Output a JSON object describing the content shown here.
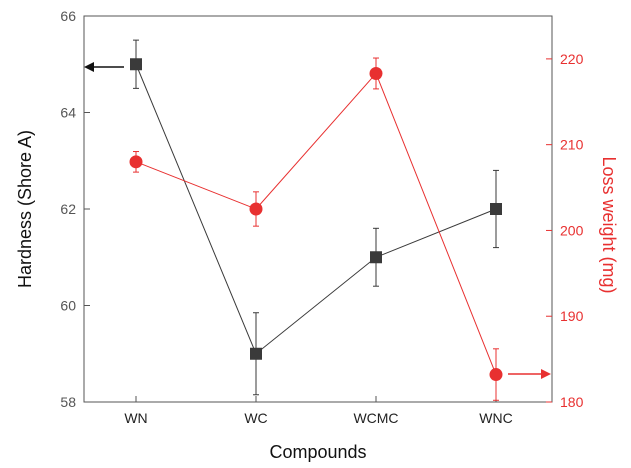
{
  "chart_data": {
    "type": "line",
    "categories": [
      "WN",
      "WC",
      "WCMC",
      "WNC"
    ],
    "xlabel": "Compounds",
    "ylabel_left": "Hardness (Shore A)",
    "ylabel_right": "Loss weight (mg)",
    "ylim_left": [
      58,
      66
    ],
    "yticks_left": [
      58,
      60,
      62,
      64,
      66
    ],
    "ylim_right": [
      180,
      225
    ],
    "yticks_right": [
      180,
      190,
      200,
      210,
      220
    ],
    "grid": false,
    "series": [
      {
        "axis": "left",
        "color": "#3a3a3a",
        "marker": "square",
        "values": [
          65.0,
          59.0,
          61.0,
          62.0
        ],
        "errors": [
          0.5,
          0.85,
          0.6,
          0.8
        ]
      },
      {
        "axis": "right",
        "color": "#e83030",
        "marker": "circle",
        "values": [
          208.0,
          202.5,
          218.3,
          183.2
        ],
        "errors": [
          1.2,
          2.0,
          1.8,
          3.0
        ]
      }
    ]
  }
}
